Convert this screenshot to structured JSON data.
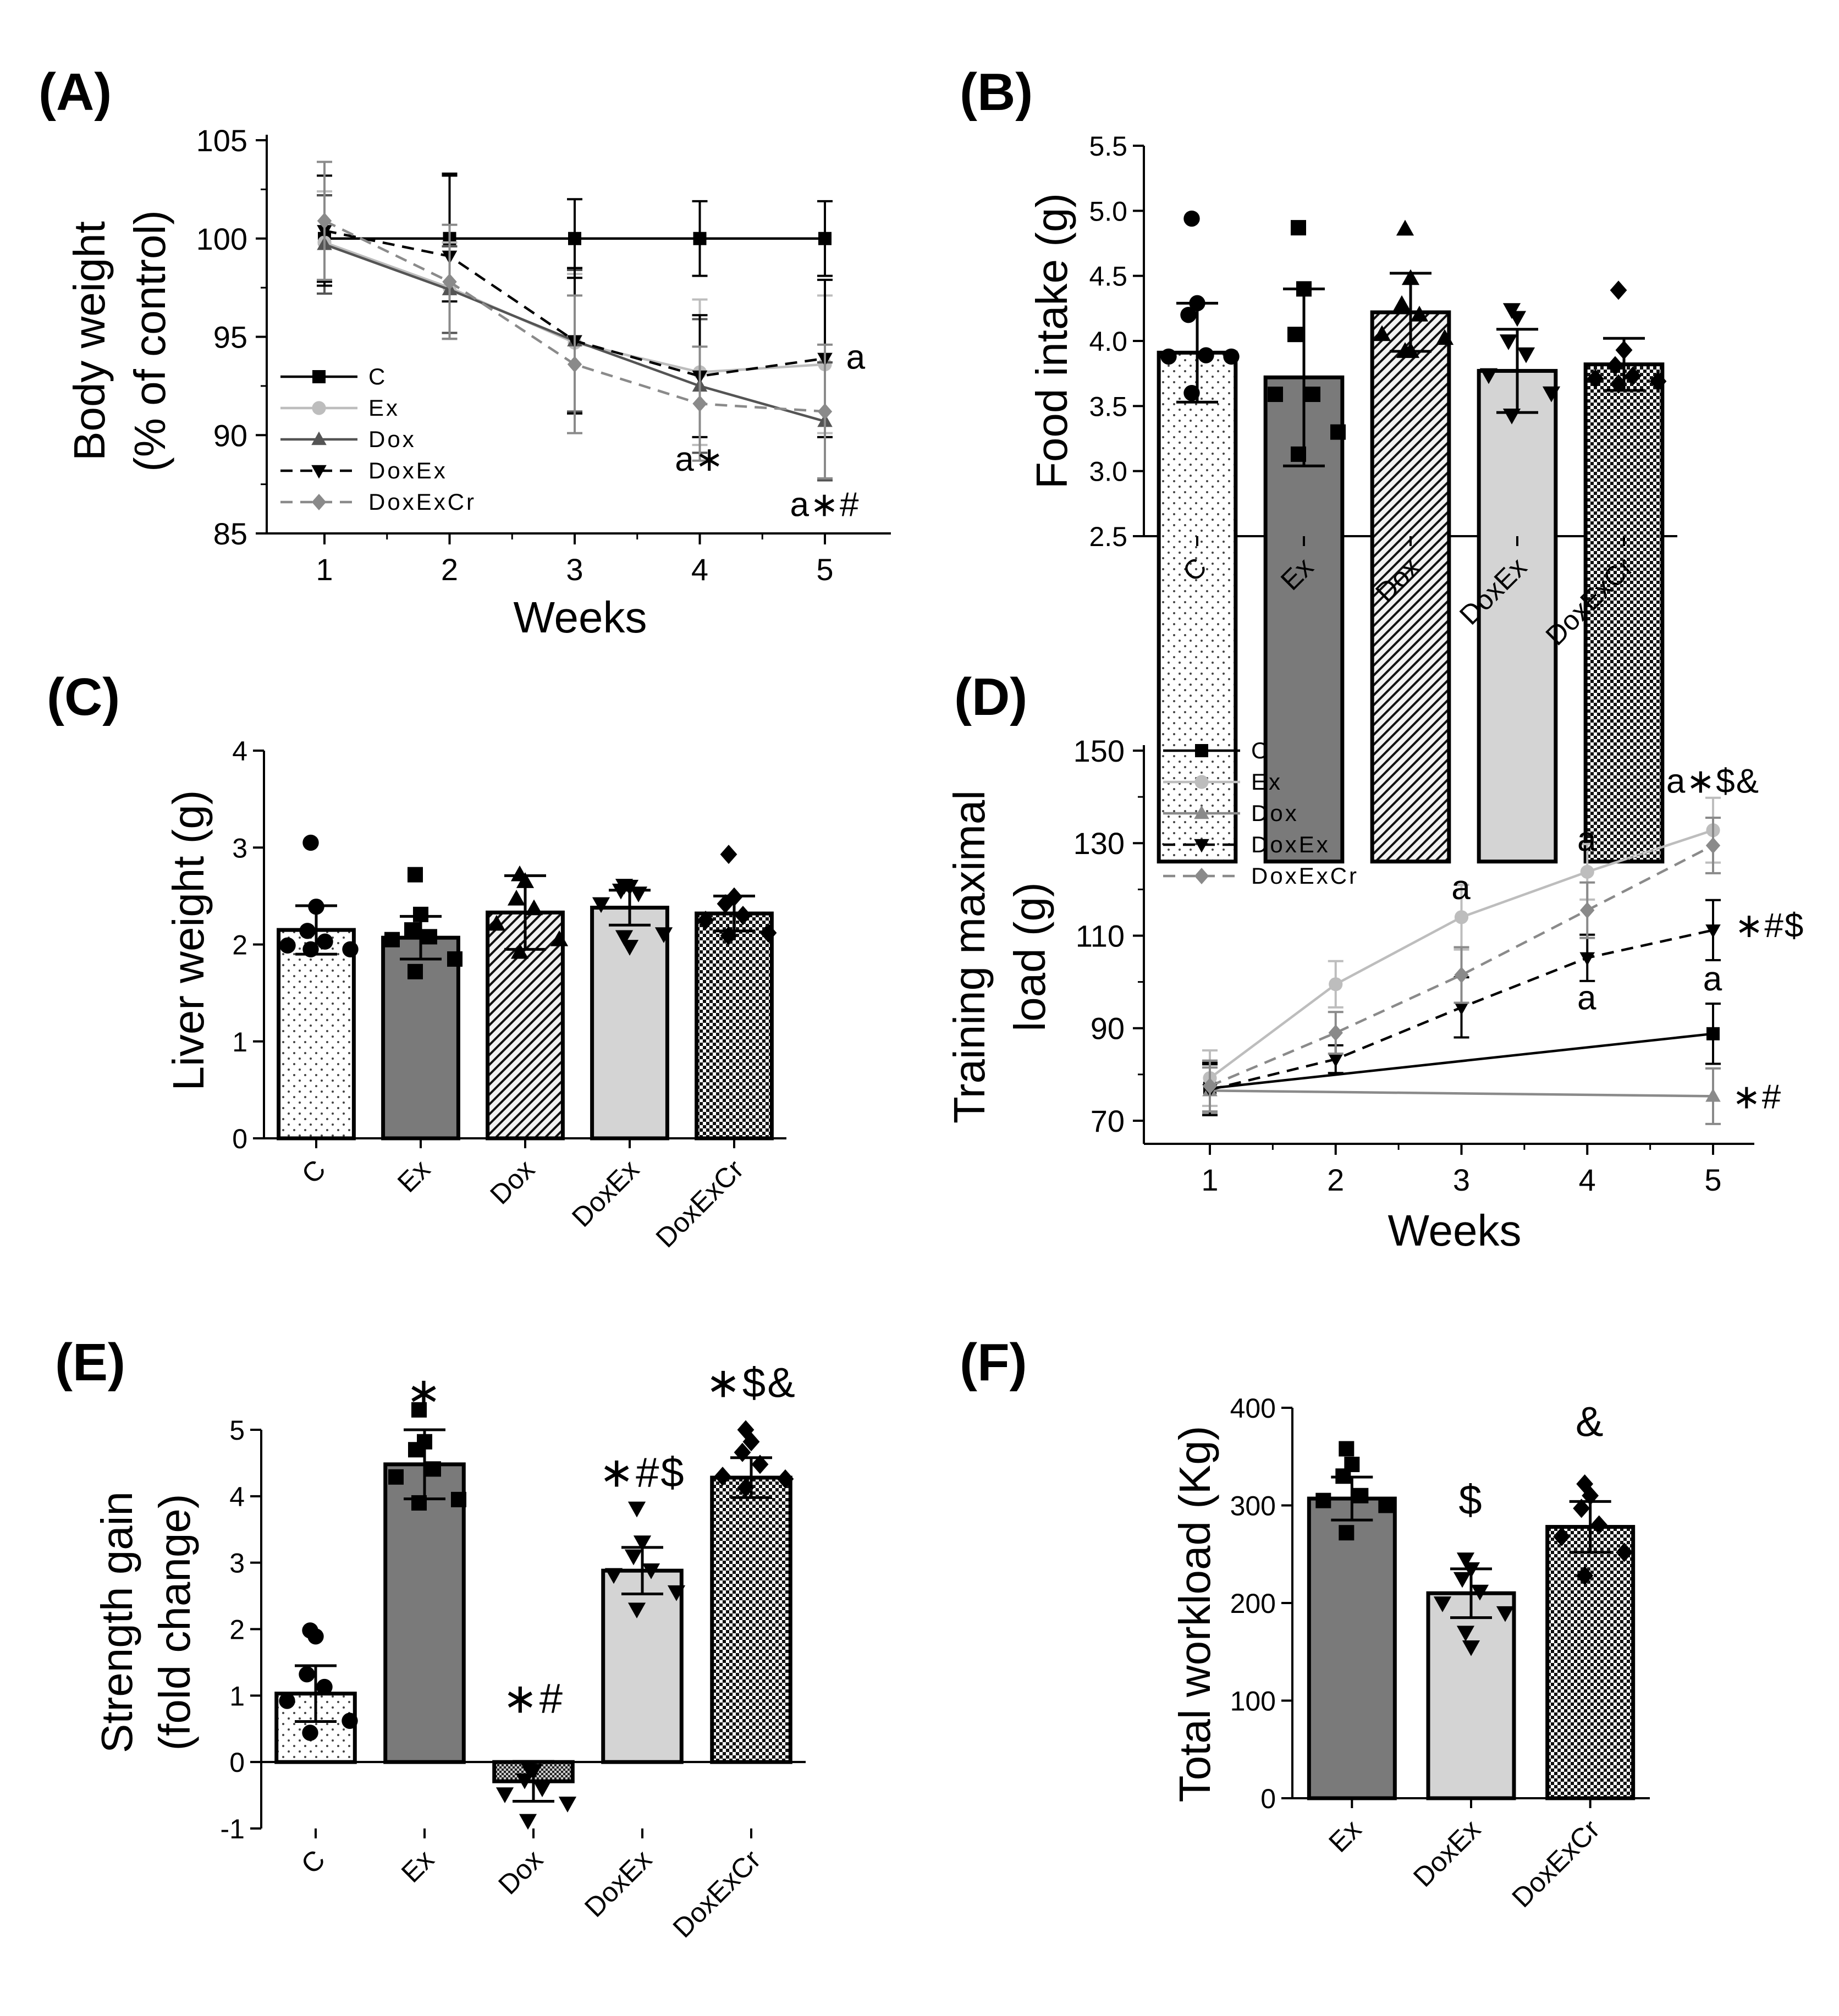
{
  "chart_data": [
    {
      "id": "A",
      "panel_label": "(A)",
      "type": "line",
      "ylabel_lines": [
        "Body weight",
        "(% of control)"
      ],
      "xlabel": "Weeks",
      "x": [
        1,
        2,
        3,
        4,
        5
      ],
      "xticks": [
        "1",
        "2",
        "3",
        "4",
        "5"
      ],
      "ylim": [
        85,
        105
      ],
      "yticks": [
        85,
        90,
        95,
        100,
        105
      ],
      "series": [
        {
          "name": "C",
          "values": [
            100,
            100,
            100,
            100,
            100
          ],
          "errors": [
            2.2,
            3.2,
            2.0,
            1.9,
            1.9
          ],
          "color": "#000000",
          "dashed": false,
          "marker": "square"
        },
        {
          "name": "Ex",
          "values": [
            99.8,
            97.5,
            94.7,
            93.2,
            93.6
          ],
          "errors": [
            2.6,
            2.3,
            3.5,
            3.7,
            3.5
          ],
          "color": "#bdbdbd",
          "dashed": false,
          "marker": "circle"
        },
        {
          "name": "Dox",
          "values": [
            99.7,
            97.4,
            94.8,
            92.5,
            90.7
          ],
          "errors": [
            2.5,
            2.2,
            3.6,
            3.4,
            3.0
          ],
          "color": "#545454",
          "dashed": false,
          "marker": "triangle-up"
        },
        {
          "name": "DoxEx",
          "values": [
            100.4,
            99.1,
            94.8,
            93.0,
            93.9
          ],
          "errors": [
            2.8,
            4.2,
            3.7,
            3.1,
            4.0
          ],
          "color": "#000000",
          "dashed": true,
          "marker": "triangle-down"
        },
        {
          "name": "DoxExCr",
          "values": [
            100.9,
            97.8,
            93.6,
            91.6,
            91.2
          ],
          "errors": [
            3.0,
            2.9,
            3.5,
            2.9,
            3.4
          ],
          "color": "#8a8a8a",
          "dashed": true,
          "marker": "diamond"
        }
      ],
      "legend_position": "bottom-left",
      "annotations": [
        {
          "text": "a",
          "x": 5.25,
          "y": 94.0
        },
        {
          "text": "a∗",
          "x": 4.0,
          "y": 88.8
        },
        {
          "text": "a∗#",
          "x": 5.0,
          "y": 86.5
        }
      ]
    },
    {
      "id": "B",
      "panel_label": "(B)",
      "type": "bar",
      "ylabel": "Food intake (g)",
      "categories": [
        "C",
        "Ex",
        "Dox",
        "DoxEx",
        "DoxExCr"
      ],
      "values": [
        3.91,
        3.72,
        4.22,
        3.77,
        3.82
      ],
      "errors": [
        0.38,
        0.68,
        0.3,
        0.32,
        0.2
      ],
      "ylim": [
        2.5,
        5.5
      ],
      "yticks": [
        2.5,
        3.0,
        3.5,
        4.0,
        4.5,
        5.0,
        5.5
      ],
      "tick_labels": [
        "2.5",
        "3.0",
        "3.5",
        "4.0",
        "4.5",
        "5.0",
        "5.5"
      ],
      "points": [
        [
          4.94,
          4.29,
          4.2,
          3.89,
          3.88,
          3.88,
          3.6
        ],
        [
          4.87,
          4.4,
          4.05,
          3.59,
          3.59,
          3.3,
          3.13
        ],
        [
          4.86,
          4.48,
          4.28,
          4.2,
          4.05,
          4.02,
          3.92,
          3.92
        ],
        [
          4.24,
          4.18,
          4.0,
          3.9,
          3.74,
          3.6,
          3.43
        ],
        [
          4.39,
          3.93,
          3.81,
          3.73,
          3.71,
          3.69,
          3.67
        ]
      ],
      "markers": [
        "circle",
        "square",
        "triangle-up",
        "triangle-down",
        "diamond"
      ],
      "fills": [
        "dots",
        "dark",
        "hatch",
        "light",
        "checker"
      ]
    },
    {
      "id": "C",
      "panel_label": "(C)",
      "type": "bar",
      "ylabel": "Liver weight (g)",
      "categories": [
        "C",
        "Ex",
        "Dox",
        "DoxEx",
        "DoxExCr"
      ],
      "values": [
        2.15,
        2.07,
        2.33,
        2.38,
        2.32
      ],
      "errors": [
        0.25,
        0.22,
        0.38,
        0.18,
        0.18
      ],
      "ylim": [
        0,
        4
      ],
      "yticks": [
        0,
        1,
        2,
        3,
        4
      ],
      "tick_labels": [
        "0",
        "1",
        "2",
        "3",
        "4"
      ],
      "points": [
        [
          3.05,
          2.39,
          2.14,
          2.03,
          1.99,
          1.95,
          1.95
        ],
        [
          2.72,
          2.31,
          2.15,
          2.08,
          2.05,
          1.85,
          1.72
        ],
        [
          2.72,
          2.65,
          2.47,
          2.37,
          2.21,
          2.05,
          1.92
        ],
        [
          2.61,
          2.6,
          2.56,
          2.53,
          2.42,
          2.11,
          2.08,
          1.98
        ],
        [
          2.93,
          2.49,
          2.42,
          2.3,
          2.25,
          2.12,
          2.09
        ]
      ],
      "markers": [
        "circle",
        "square",
        "triangle-up",
        "triangle-down",
        "diamond"
      ],
      "fills": [
        "dots",
        "dark",
        "hatch",
        "light",
        "checker"
      ]
    },
    {
      "id": "D",
      "panel_label": "(D)",
      "type": "line",
      "ylabel_lines": [
        "Training maximal",
        "load (g)"
      ],
      "xlabel": "Weeks",
      "x": [
        1,
        2,
        3,
        4,
        5
      ],
      "xticks": [
        "1",
        "2",
        "3",
        "4",
        "5"
      ],
      "ylim": [
        65,
        150
      ],
      "yticks": [
        70,
        90,
        110,
        130,
        150
      ],
      "series": [
        {
          "name": "C",
          "values": [
            77.0,
            null,
            null,
            null,
            88.8
          ],
          "errors": [
            5.5,
            0,
            0,
            0,
            6.5
          ],
          "color": "#000000",
          "dashed": false,
          "marker": "square"
        },
        {
          "name": "Ex",
          "values": [
            79.2,
            99.5,
            114.0,
            123.8,
            132.8
          ],
          "errors": [
            6.0,
            5.0,
            7.0,
            6.0,
            7.0
          ],
          "color": "#bdbdbd",
          "dashed": false,
          "marker": "circle"
        },
        {
          "name": "Dox",
          "values": [
            76.5,
            null,
            null,
            null,
            75.3
          ],
          "errors": [
            5.0,
            0,
            0,
            0,
            6.0
          ],
          "color": "#8a8a8a",
          "dashed": false,
          "marker": "triangle-up"
        },
        {
          "name": "DoxEx",
          "values": [
            76.7,
            83.3,
            94.5,
            105.2,
            111.2
          ],
          "errors": [
            5.5,
            3.0,
            6.5,
            5.0,
            6.5
          ],
          "color": "#000000",
          "dashed": true,
          "marker": "triangle-down"
        },
        {
          "name": "DoxExCr",
          "values": [
            77.5,
            89.0,
            101.5,
            115.5,
            129.5
          ],
          "errors": [
            5.5,
            4.5,
            6.0,
            6.0,
            6.0
          ],
          "color": "#8a8a8a",
          "dashed": true,
          "marker": "diamond"
        }
      ],
      "legend_position": "top-left",
      "annotations": [
        {
          "text": "a∗$&",
          "x": 5.0,
          "y": 143.5
        },
        {
          "text": "a",
          "x": 4.0,
          "y": 131.0
        },
        {
          "text": "a",
          "x": 3.0,
          "y": 120.5
        },
        {
          "text": "∗#$",
          "x": 5.45,
          "y": 112.3
        },
        {
          "text": "a",
          "x": 5.0,
          "y": 100.8
        },
        {
          "text": "a",
          "x": 4.0,
          "y": 96.7
        },
        {
          "text": "∗#",
          "x": 5.35,
          "y": 75.3
        }
      ]
    },
    {
      "id": "E",
      "panel_label": "(E)",
      "type": "bar",
      "ylabel_lines": [
        "Strength gain",
        "(fold change)"
      ],
      "categories": [
        "C",
        "Ex",
        "Dox",
        "DoxEx",
        "DoxExCr"
      ],
      "values": [
        1.03,
        4.48,
        -0.29,
        2.88,
        4.28
      ],
      "errors": [
        0.42,
        0.52,
        0.3,
        0.35,
        0.3
      ],
      "ylim": [
        -1,
        5
      ],
      "yticks": [
        -1,
        0,
        1,
        2,
        3,
        4,
        5
      ],
      "tick_labels": [
        "-1",
        "0",
        "1",
        "2",
        "3",
        "4",
        "5"
      ],
      "points": [
        [
          1.98,
          1.89,
          1.32,
          1.13,
          0.92,
          0.62,
          0.44
        ],
        [
          5.3,
          4.82,
          4.7,
          4.41,
          4.29,
          3.95,
          3.9
        ],
        [
          -0.07,
          -0.13,
          -0.27,
          -0.39,
          -0.48,
          -0.62,
          -0.88
        ],
        [
          3.82,
          3.31,
          3.1,
          2.89,
          2.82,
          2.56,
          2.3
        ],
        [
          5.0,
          4.82,
          4.66,
          4.48,
          4.3,
          4.26,
          4.13
        ]
      ],
      "markers": [
        "circle",
        "square",
        "triangle-down",
        "triangle-down",
        "diamond"
      ],
      "fills": [
        "dots",
        "dark",
        "checker-small",
        "light",
        "checker"
      ],
      "annotations": [
        {
          "text": "∗",
          "category": 1,
          "y": 5.55
        },
        {
          "text": "∗#",
          "category": 2,
          "y": 0.95
        },
        {
          "text": "∗#$",
          "category": 3,
          "y": 4.35
        },
        {
          "text": "∗$&",
          "category": 4,
          "y": 5.7
        }
      ]
    },
    {
      "id": "F",
      "panel_label": "(F)",
      "type": "bar",
      "ylabel": "Total workload (Kg)",
      "categories": [
        "Ex",
        "DoxEx",
        "DoxExCr"
      ],
      "values": [
        307,
        210,
        278
      ],
      "errors": [
        22,
        25,
        26
      ],
      "ylim": [
        0,
        400
      ],
      "yticks": [
        0,
        100,
        200,
        300,
        400
      ],
      "tick_labels": [
        "0",
        "100",
        "200",
        "300",
        "400"
      ],
      "points": [
        [
          358,
          342,
          330,
          310,
          305,
          300,
          272
        ],
        [
          245,
          235,
          225,
          212,
          200,
          190,
          170,
          155
        ],
        [
          322,
          310,
          297,
          280,
          268,
          252,
          228
        ]
      ],
      "markers": [
        "square",
        "triangle-down",
        "diamond"
      ],
      "fills": [
        "dark",
        "light",
        "checker"
      ],
      "annotations": [
        {
          "text": "$",
          "category": 1,
          "y": 305
        },
        {
          "text": "&",
          "category": 2,
          "y": 385
        }
      ]
    }
  ]
}
